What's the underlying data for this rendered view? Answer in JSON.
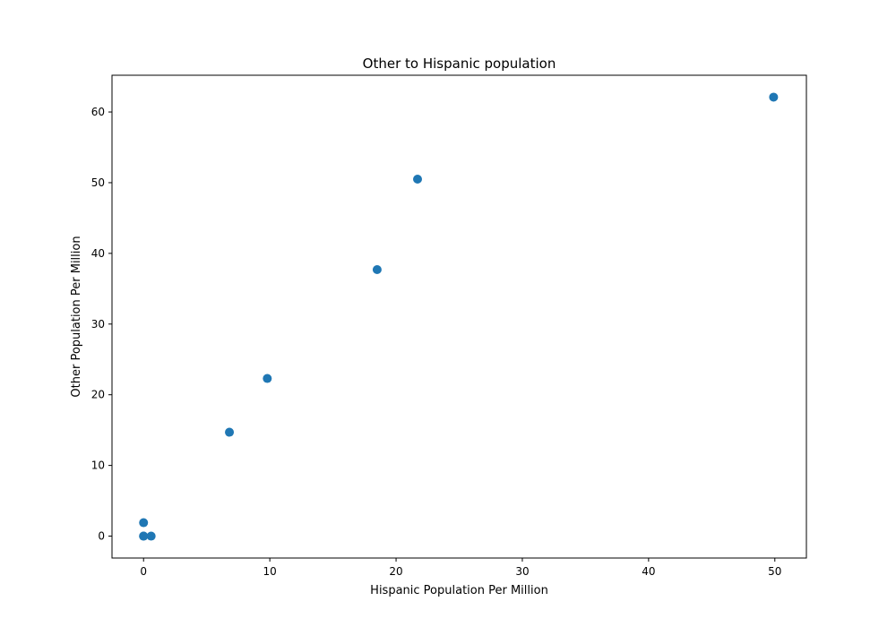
{
  "chart_data": {
    "type": "scatter",
    "title": "Other to Hispanic population",
    "xlabel": "Hispanic Population Per Million",
    "ylabel": "Other Population Per Million",
    "xlim": [
      -2.5,
      52.5
    ],
    "ylim": [
      -3.1,
      65.2
    ],
    "xticks": [
      0,
      10,
      20,
      30,
      40,
      50
    ],
    "yticks": [
      0,
      10,
      20,
      30,
      40,
      50,
      60
    ],
    "xtick_labels": [
      "0",
      "10",
      "20",
      "30",
      "40",
      "50"
    ],
    "ytick_labels": [
      "0",
      "10",
      "20",
      "30",
      "40",
      "50",
      "60"
    ],
    "grid": false,
    "marker_color": "#1f77b4",
    "points": [
      {
        "x": 0.0,
        "y": 0.0
      },
      {
        "x": 0.0,
        "y": 0.0
      },
      {
        "x": 0.0,
        "y": 1.9
      },
      {
        "x": 0.6,
        "y": 0.0
      },
      {
        "x": 6.8,
        "y": 14.7
      },
      {
        "x": 9.8,
        "y": 22.3
      },
      {
        "x": 18.5,
        "y": 37.7
      },
      {
        "x": 21.7,
        "y": 50.5
      },
      {
        "x": 49.9,
        "y": 62.1
      }
    ]
  }
}
